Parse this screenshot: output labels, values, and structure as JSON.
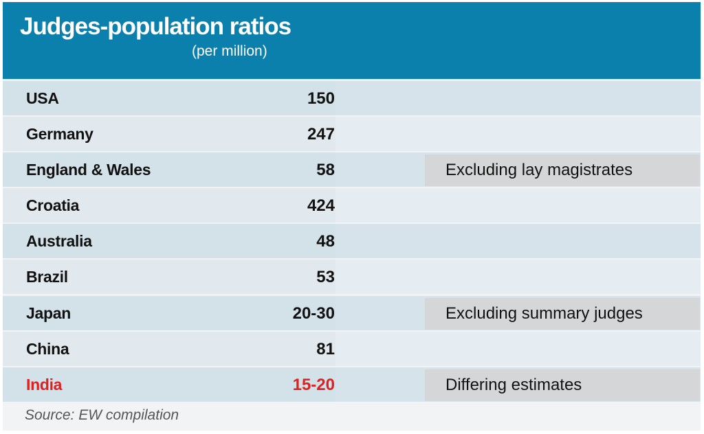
{
  "header": {
    "title": "Judges-population ratios",
    "subtitle": "(per million)"
  },
  "colors": {
    "header_bg": "#0b80ad",
    "highlight": "#e0201f",
    "row_dark": "#d3e1e9",
    "row_light": "#e1e9ef",
    "note_bg": "#d4d6d8"
  },
  "chart_data": {
    "type": "table",
    "title": "Judges-population ratios",
    "subtitle": "(per million)",
    "rows": [
      {
        "country": "USA",
        "value": "150",
        "note": ""
      },
      {
        "country": "Germany",
        "value": "247",
        "note": ""
      },
      {
        "country": "England & Wales",
        "value": "58",
        "note": "Excluding lay magistrates"
      },
      {
        "country": "Croatia",
        "value": "424",
        "note": ""
      },
      {
        "country": "Australia",
        "value": "48",
        "note": ""
      },
      {
        "country": "Brazil",
        "value": "53",
        "note": ""
      },
      {
        "country": "Japan",
        "value": "20-30",
        "note": "Excluding summary judges"
      },
      {
        "country": "China",
        "value": "81",
        "note": ""
      },
      {
        "country": "India",
        "value": "15-20",
        "note": "Differing estimates",
        "highlight": true
      }
    ]
  },
  "footer": {
    "source": "Source: EW compilation"
  }
}
